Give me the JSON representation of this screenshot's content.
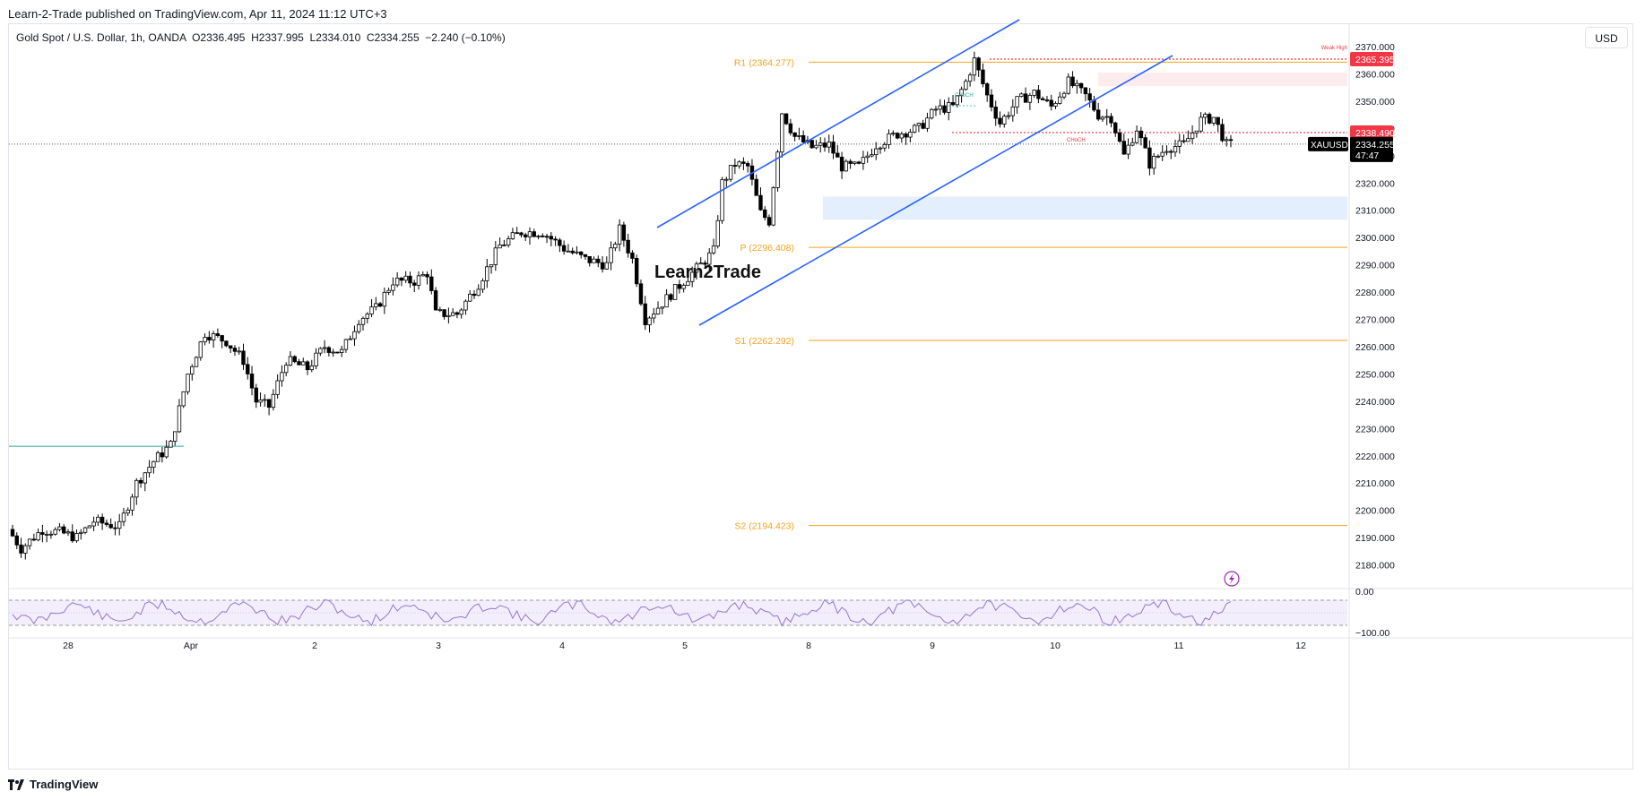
{
  "header": {
    "published": "Learn-2-Trade published on TradingView.com, Apr 11, 2024 11:12 UTC+3"
  },
  "symbol_line": "Gold Spot / U.S. Dollar, 1h, OANDA  O2336.495  H2337.995  L2334.010  C2334.255  −2.240 (−0.10%)",
  "currency_button": "USD",
  "watermark": "Learn2Trade",
  "footer": {
    "brand": "TradingView"
  },
  "colors": {
    "up": "#ffffff",
    "down": "#000000",
    "pivot": "#f7a21b",
    "channel": "#2962ff",
    "zone": "#e3effd",
    "rsi": "#9575cd",
    "red": "#f23645"
  },
  "chart_data": {
    "type": "candlestick",
    "title": "Gold Spot / U.S. Dollar, 1h, OANDA",
    "ohlc_legend": {
      "open": 2336.495,
      "high": 2337.995,
      "low": 2334.01,
      "close": 2334.255,
      "change": "−2.240 (−0.10%)"
    },
    "y_axis": {
      "ticks": [
        "2370.000",
        "2360.000",
        "2350.000",
        "2340.000",
        "2330.000",
        "2320.000",
        "2310.000",
        "2300.000",
        "2290.000",
        "2280.000",
        "2270.000",
        "2260.000",
        "2250.000",
        "2240.000",
        "2230.000",
        "2220.000",
        "2210.000",
        "2200.000",
        "2190.000",
        "2180.000"
      ],
      "range": [
        2175,
        2372
      ]
    },
    "x_axis": {
      "ticks": [
        "28",
        "Apr",
        "2",
        "3",
        "4",
        "5",
        "8",
        "9",
        "10",
        "11",
        "12"
      ]
    },
    "price_labels": [
      {
        "text": "2365.395",
        "value": 2365.395,
        "color": "#f23645"
      },
      {
        "text": "2338.490",
        "value": 2338.49,
        "color": "#f23645"
      },
      {
        "text": "2334.255",
        "value": 2334.255,
        "color": "#000000",
        "sub": "47:47",
        "symbol": "XAUUSD"
      }
    ],
    "pivots": [
      {
        "label": "R1 (2364.277)",
        "value": 2364.277
      },
      {
        "label": "P (2296.408)",
        "value": 2296.408
      },
      {
        "label": "S1 (2262.292)",
        "value": 2262.292
      },
      {
        "label": "S2 (2194.423)",
        "value": 2194.423
      }
    ],
    "annotations": [
      "Weak High",
      "CHoCH",
      "CHoCH"
    ],
    "demand_zone": [
      2306.5,
      2315.0
    ],
    "support_line_value": 2223.5,
    "channel": {
      "upper": [
        [
          2303.5,
          2372.0
        ]
      ],
      "lower": [
        [
          2268.5,
          2365.0
        ]
      ]
    },
    "series_anchors": [
      {
        "t": 0,
        "v": 2193
      },
      {
        "t": 3,
        "v": 2186
      },
      {
        "t": 8,
        "v": 2193
      },
      {
        "t": 12,
        "v": 2192
      },
      {
        "t": 16,
        "v": 2190
      },
      {
        "t": 20,
        "v": 2196
      },
      {
        "t": 26,
        "v": 2194
      },
      {
        "t": 30,
        "v": 2210
      },
      {
        "t": 34,
        "v": 2218
      },
      {
        "t": 38,
        "v": 2224
      },
      {
        "t": 42,
        "v": 2250
      },
      {
        "t": 46,
        "v": 2265
      },
      {
        "t": 51,
        "v": 2262
      },
      {
        "t": 55,
        "v": 2255
      },
      {
        "t": 58,
        "v": 2240
      },
      {
        "t": 61,
        "v": 2238
      },
      {
        "t": 65,
        "v": 2255
      },
      {
        "t": 70,
        "v": 2252
      },
      {
        "t": 74,
        "v": 2260
      },
      {
        "t": 78,
        "v": 2258
      },
      {
        "t": 82,
        "v": 2270
      },
      {
        "t": 86,
        "v": 2274
      },
      {
        "t": 90,
        "v": 2284
      },
      {
        "t": 95,
        "v": 2284
      },
      {
        "t": 98,
        "v": 2287
      },
      {
        "t": 100,
        "v": 2272
      },
      {
        "t": 105,
        "v": 2272
      },
      {
        "t": 110,
        "v": 2283
      },
      {
        "t": 115,
        "v": 2297
      },
      {
        "t": 120,
        "v": 2302
      },
      {
        "t": 125,
        "v": 2302
      },
      {
        "t": 130,
        "v": 2296
      },
      {
        "t": 135,
        "v": 2292
      },
      {
        "t": 140,
        "v": 2290
      },
      {
        "t": 143,
        "v": 2303
      },
      {
        "t": 146,
        "v": 2292
      },
      {
        "t": 149,
        "v": 2270
      },
      {
        "t": 153,
        "v": 2276
      },
      {
        "t": 158,
        "v": 2284
      },
      {
        "t": 162,
        "v": 2290
      },
      {
        "t": 165,
        "v": 2295
      },
      {
        "t": 167,
        "v": 2320
      },
      {
        "t": 170,
        "v": 2327
      },
      {
        "t": 173,
        "v": 2326
      },
      {
        "t": 176,
        "v": 2309
      },
      {
        "t": 178,
        "v": 2306
      },
      {
        "t": 181,
        "v": 2346
      },
      {
        "t": 184,
        "v": 2337
      },
      {
        "t": 188,
        "v": 2333
      },
      {
        "t": 192,
        "v": 2334
      },
      {
        "t": 195,
        "v": 2326
      },
      {
        "t": 199,
        "v": 2326
      },
      {
        "t": 203,
        "v": 2334
      },
      {
        "t": 208,
        "v": 2338
      },
      {
        "t": 213,
        "v": 2340
      },
      {
        "t": 217,
        "v": 2347
      },
      {
        "t": 221,
        "v": 2348
      },
      {
        "t": 224,
        "v": 2357
      },
      {
        "t": 226,
        "v": 2365
      },
      {
        "t": 229,
        "v": 2352
      },
      {
        "t": 232,
        "v": 2342
      },
      {
        "t": 236,
        "v": 2350
      },
      {
        "t": 240,
        "v": 2353
      },
      {
        "t": 244,
        "v": 2348
      },
      {
        "t": 248,
        "v": 2357
      },
      {
        "t": 252,
        "v": 2352
      },
      {
        "t": 255,
        "v": 2345
      },
      {
        "t": 258,
        "v": 2344
      },
      {
        "t": 261,
        "v": 2330
      },
      {
        "t": 264,
        "v": 2340
      },
      {
        "t": 267,
        "v": 2327
      },
      {
        "t": 271,
        "v": 2333
      },
      {
        "t": 275,
        "v": 2334
      },
      {
        "t": 279,
        "v": 2343
      },
      {
        "t": 282,
        "v": 2344
      },
      {
        "t": 285,
        "v": 2334
      }
    ],
    "rsi": {
      "ticks": [
        "0.00",
        "−100.00"
      ]
    }
  }
}
